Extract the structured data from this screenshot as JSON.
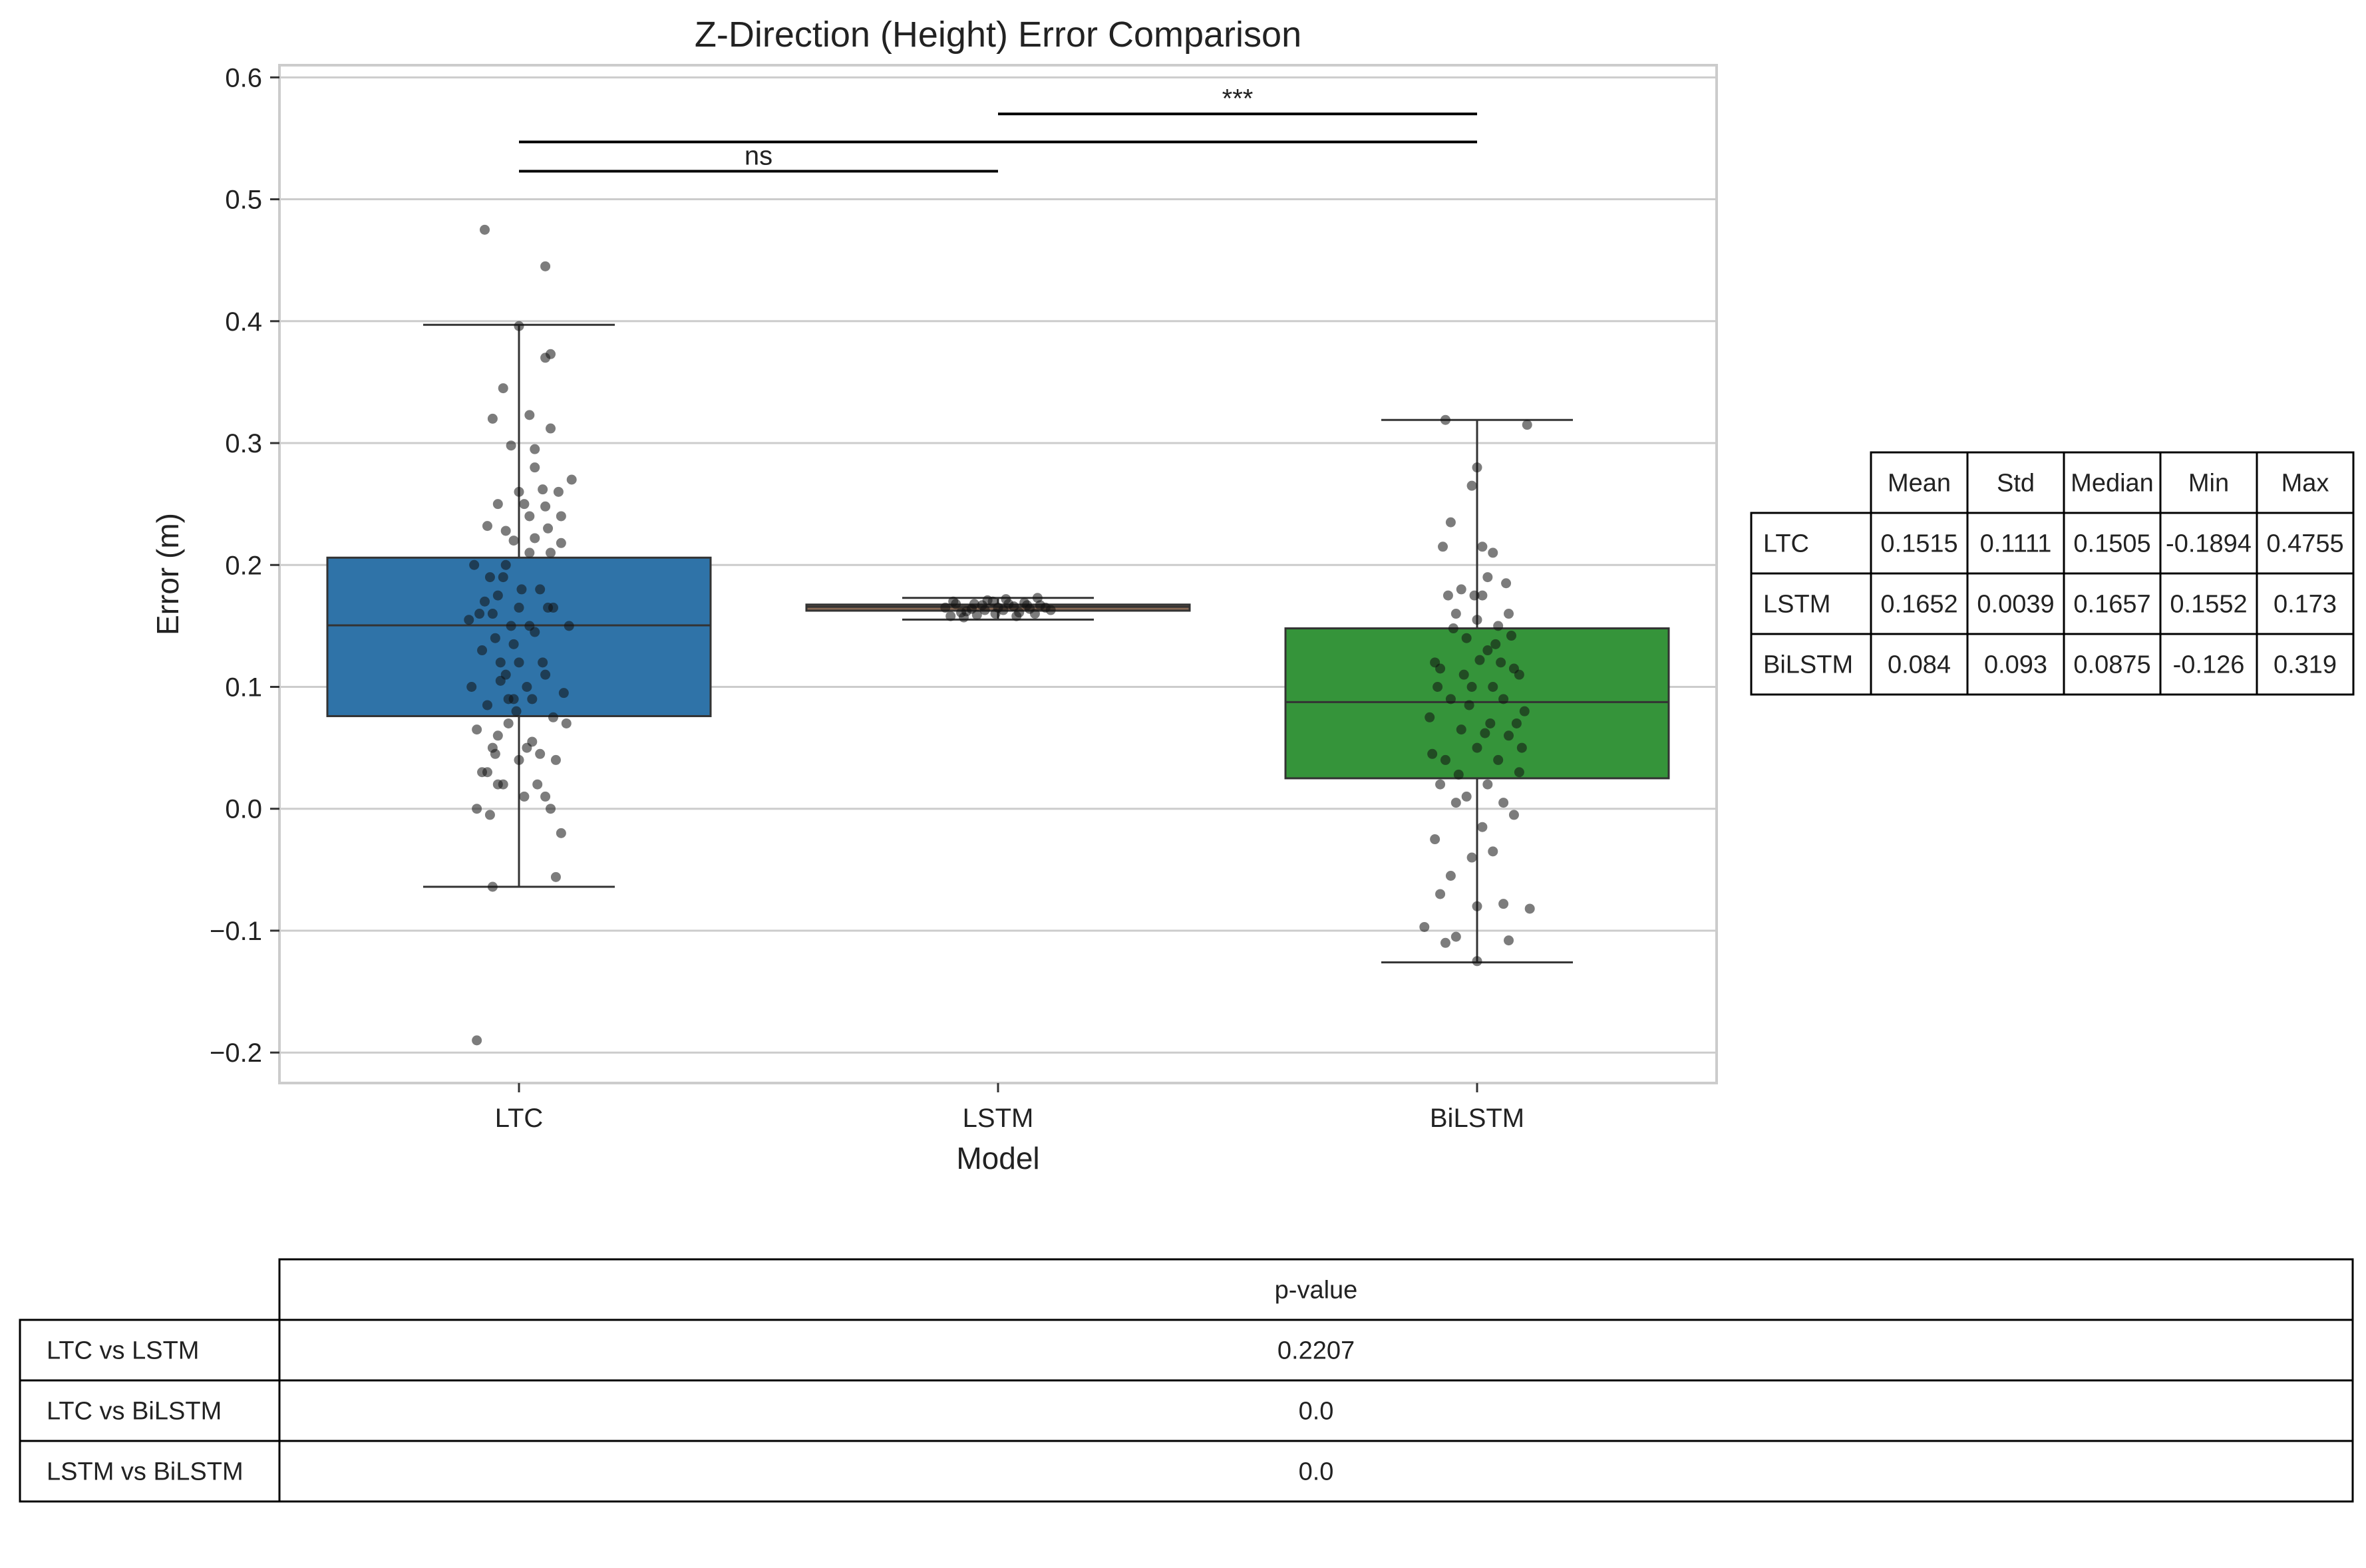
{
  "chart_data": {
    "type": "box",
    "title": "Z-Direction (Height) Error Comparison",
    "xlabel": "Model",
    "ylabel": "Error (m)",
    "categories": [
      "LTC",
      "LSTM",
      "BiLSTM"
    ],
    "ylim": [
      -0.225,
      0.61
    ],
    "yticks": [
      -0.2,
      -0.1,
      0.0,
      0.1,
      0.2,
      0.3,
      0.4,
      0.5,
      0.6
    ],
    "ytick_labels": [
      "−0.2",
      "−0.1",
      "0.0",
      "0.1",
      "0.2",
      "0.3",
      "0.4",
      "0.5",
      "0.6"
    ],
    "grid": true,
    "colors": {
      "LTC": "#2f73a8",
      "LSTM": "#8a6a55",
      "BiLSTM": "#35943a"
    },
    "boxes": [
      {
        "name": "LTC",
        "whisker_low": -0.064,
        "q1": 0.076,
        "median": 0.1505,
        "q3": 0.206,
        "whisker_high": 0.397
      },
      {
        "name": "LSTM",
        "whisker_low": 0.1552,
        "q1": 0.1625,
        "median": 0.1657,
        "q3": 0.1675,
        "whisker_high": 0.173
      },
      {
        "name": "BiLSTM",
        "whisker_low": -0.126,
        "q1": 0.025,
        "median": 0.0875,
        "q3": 0.148,
        "whisker_high": 0.319
      }
    ],
    "points": {
      "LTC": [
        [
          -0.16,
          0.0
        ],
        [
          -0.12,
          0.03
        ],
        [
          -0.08,
          0.06
        ],
        [
          -0.04,
          0.09
        ],
        [
          0.0,
          0.12
        ],
        [
          0.04,
          0.15
        ],
        [
          0.08,
          0.18
        ],
        [
          0.12,
          0.21
        ],
        [
          0.16,
          0.24
        ],
        [
          0.2,
          0.27
        ],
        [
          -0.18,
          0.1
        ],
        [
          -0.14,
          0.13
        ],
        [
          -0.1,
          0.16
        ],
        [
          -0.06,
          0.19
        ],
        [
          -0.02,
          0.22
        ],
        [
          0.02,
          0.25
        ],
        [
          0.06,
          0.28
        ],
        [
          0.1,
          0.01
        ],
        [
          0.14,
          0.04
        ],
        [
          0.18,
          0.07
        ],
        [
          -0.17,
          0.2
        ],
        [
          -0.13,
          0.17
        ],
        [
          -0.09,
          0.14
        ],
        [
          -0.05,
          0.11
        ],
        [
          -0.01,
          0.08
        ],
        [
          0.03,
          0.05
        ],
        [
          0.07,
          0.02
        ],
        [
          0.11,
          0.23
        ],
        [
          0.15,
          0.26
        ],
        [
          0.19,
          0.15
        ],
        [
          -0.15,
          0.16
        ],
        [
          -0.11,
          0.19
        ],
        [
          -0.07,
          0.12
        ],
        [
          -0.03,
          0.15
        ],
        [
          0.01,
          0.18
        ],
        [
          0.05,
          0.09
        ],
        [
          0.09,
          0.12
        ],
        [
          0.13,
          0.165
        ],
        [
          0.17,
          0.095
        ],
        [
          -0.19,
          0.155
        ],
        [
          -0.08,
          0.175
        ],
        [
          0.0,
          0.165
        ],
        [
          0.06,
          0.145
        ],
        [
          -0.12,
          0.085
        ],
        [
          0.1,
          0.11
        ],
        [
          -0.05,
          0.2
        ],
        [
          0.04,
          0.21
        ],
        [
          -0.1,
          0.05
        ],
        [
          0.08,
          0.045
        ],
        [
          -0.02,
          0.135
        ],
        [
          -0.06,
          0.02
        ],
        [
          0.12,
          0.0
        ],
        [
          -0.14,
          0.03
        ],
        [
          0.16,
          -0.02
        ],
        [
          0.14,
          -0.056
        ],
        [
          -0.1,
          -0.064
        ],
        [
          -0.13,
          0.475
        ],
        [
          0.1,
          0.445
        ],
        [
          0.1,
          0.37
        ],
        [
          0.12,
          0.373
        ],
        [
          0.0,
          0.396
        ],
        [
          -0.06,
          0.345
        ],
        [
          0.04,
          0.323
        ],
        [
          -0.1,
          0.32
        ],
        [
          0.12,
          0.312
        ],
        [
          0.06,
          0.295
        ],
        [
          -0.03,
          0.298
        ],
        [
          0.0,
          0.26
        ],
        [
          0.09,
          0.262
        ],
        [
          -0.08,
          0.25
        ],
        [
          0.1,
          0.248
        ],
        [
          0.04,
          0.24
        ],
        [
          -0.05,
          0.228
        ],
        [
          0.06,
          0.222
        ],
        [
          -0.12,
          0.232
        ],
        [
          0.16,
          0.218
        ],
        [
          -0.08,
          0.02
        ],
        [
          0.02,
          0.01
        ],
        [
          -0.11,
          -0.005
        ],
        [
          -0.16,
          -0.19
        ],
        [
          0.13,
          0.075
        ],
        [
          -0.04,
          0.07
        ],
        [
          0.05,
          0.055
        ],
        [
          0.0,
          0.04
        ],
        [
          -0.09,
          0.045
        ],
        [
          0.03,
          0.1
        ],
        [
          -0.02,
          0.09
        ],
        [
          -0.07,
          0.105
        ],
        [
          0.11,
          0.165
        ],
        [
          -0.16,
          0.065
        ]
      ],
      "LSTM": [
        [
          -0.18,
          0.158
        ],
        [
          -0.14,
          0.161
        ],
        [
          -0.1,
          0.164
        ],
        [
          -0.06,
          0.167
        ],
        [
          -0.02,
          0.17
        ],
        [
          0.02,
          0.163
        ],
        [
          0.06,
          0.166
        ],
        [
          0.1,
          0.169
        ],
        [
          0.14,
          0.16
        ],
        [
          0.18,
          0.165
        ],
        [
          -0.16,
          0.168
        ],
        [
          -0.12,
          0.162
        ],
        [
          -0.08,
          0.159
        ],
        [
          -0.04,
          0.171
        ],
        [
          0.0,
          0.165
        ],
        [
          0.04,
          0.168
        ],
        [
          0.08,
          0.161
        ],
        [
          0.12,
          0.164
        ],
        [
          0.16,
          0.167
        ],
        [
          0.2,
          0.163
        ],
        [
          -0.2,
          0.165
        ],
        [
          -0.17,
          0.17
        ],
        [
          -0.13,
          0.157
        ],
        [
          -0.09,
          0.168
        ],
        [
          -0.05,
          0.163
        ],
        [
          -0.01,
          0.16
        ],
        [
          0.03,
          0.172
        ],
        [
          0.07,
          0.158
        ],
        [
          0.11,
          0.167
        ],
        [
          0.15,
          0.173
        ]
      ],
      "BiLSTM": [
        [
          -0.12,
          0.319
        ],
        [
          0.19,
          0.315
        ],
        [
          0.0,
          0.28
        ],
        [
          -0.02,
          0.265
        ],
        [
          -0.1,
          0.235
        ],
        [
          0.02,
          0.215
        ],
        [
          0.06,
          0.21
        ],
        [
          -0.13,
          0.215
        ],
        [
          -0.11,
          0.175
        ],
        [
          0.04,
          0.19
        ],
        [
          -0.06,
          0.18
        ],
        [
          0.02,
          0.175
        ],
        [
          0.12,
          0.16
        ],
        [
          -0.08,
          0.16
        ],
        [
          0.0,
          0.155
        ],
        [
          0.08,
          0.15
        ],
        [
          -0.14,
          0.115
        ],
        [
          0.14,
          0.115
        ],
        [
          -0.04,
          0.14
        ],
        [
          0.04,
          0.13
        ],
        [
          0.16,
          0.11
        ],
        [
          -0.16,
          0.12
        ],
        [
          0.06,
          0.1
        ],
        [
          -0.02,
          0.1
        ],
        [
          0.1,
          0.09
        ],
        [
          -0.1,
          0.09
        ],
        [
          0.18,
          0.08
        ],
        [
          -0.18,
          0.075
        ],
        [
          0.12,
          0.06
        ],
        [
          -0.06,
          0.065
        ],
        [
          0.0,
          0.05
        ],
        [
          0.08,
          0.04
        ],
        [
          -0.12,
          0.04
        ],
        [
          0.16,
          0.03
        ],
        [
          -0.14,
          0.02
        ],
        [
          0.04,
          0.02
        ],
        [
          -0.04,
          0.01
        ],
        [
          0.1,
          0.005
        ],
        [
          -0.08,
          0.005
        ],
        [
          0.14,
          -0.005
        ],
        [
          0.02,
          -0.015
        ],
        [
          -0.16,
          -0.025
        ],
        [
          0.06,
          -0.035
        ],
        [
          -0.02,
          -0.04
        ],
        [
          -0.1,
          -0.055
        ],
        [
          0.0,
          -0.08
        ],
        [
          0.2,
          -0.082
        ],
        [
          -0.14,
          -0.07
        ],
        [
          0.1,
          -0.078
        ],
        [
          -0.2,
          -0.097
        ],
        [
          -0.12,
          -0.11
        ],
        [
          0.12,
          -0.108
        ],
        [
          0.0,
          -0.125
        ],
        [
          -0.08,
          -0.105
        ],
        [
          0.05,
          0.07
        ],
        [
          -0.05,
          0.11
        ],
        [
          0.13,
          0.142
        ],
        [
          -0.09,
          0.148
        ],
        [
          0.01,
          0.122
        ],
        [
          -0.15,
          0.1
        ],
        [
          0.09,
          0.12
        ],
        [
          -0.03,
          0.085
        ],
        [
          0.15,
          0.07
        ],
        [
          -0.07,
          0.028
        ],
        [
          0.03,
          0.062
        ],
        [
          0.17,
          0.05
        ],
        [
          -0.17,
          0.045
        ],
        [
          0.07,
          0.135
        ],
        [
          -0.01,
          0.175
        ],
        [
          0.11,
          0.185
        ]
      ]
    },
    "significance": [
      {
        "pair": [
          "LTC",
          "LSTM"
        ],
        "label": "ns"
      },
      {
        "pair": [
          "LTC",
          "BiLSTM"
        ],
        "label": ""
      },
      {
        "pair": [
          "LSTM",
          "BiLSTM"
        ],
        "label": "***"
      }
    ],
    "stats_table": {
      "columns": [
        "Mean",
        "Std",
        "Median",
        "Min",
        "Max"
      ],
      "rows": [
        {
          "label": "LTC",
          "values": [
            "0.1515",
            "0.1111",
            "0.1505",
            "-0.1894",
            "0.4755"
          ]
        },
        {
          "label": "LSTM",
          "values": [
            "0.1652",
            "0.0039",
            "0.1657",
            "0.1552",
            "0.173"
          ]
        },
        {
          "label": "BiLSTM",
          "values": [
            "0.084",
            "0.093",
            "0.0875",
            "-0.126",
            "0.319"
          ]
        }
      ]
    },
    "pvalue_table": {
      "column": "p-value",
      "rows": [
        {
          "label": "LTC vs LSTM",
          "value": "0.2207"
        },
        {
          "label": "LTC vs BiLSTM",
          "value": "0.0"
        },
        {
          "label": "LSTM vs BiLSTM",
          "value": "0.0"
        }
      ]
    }
  }
}
